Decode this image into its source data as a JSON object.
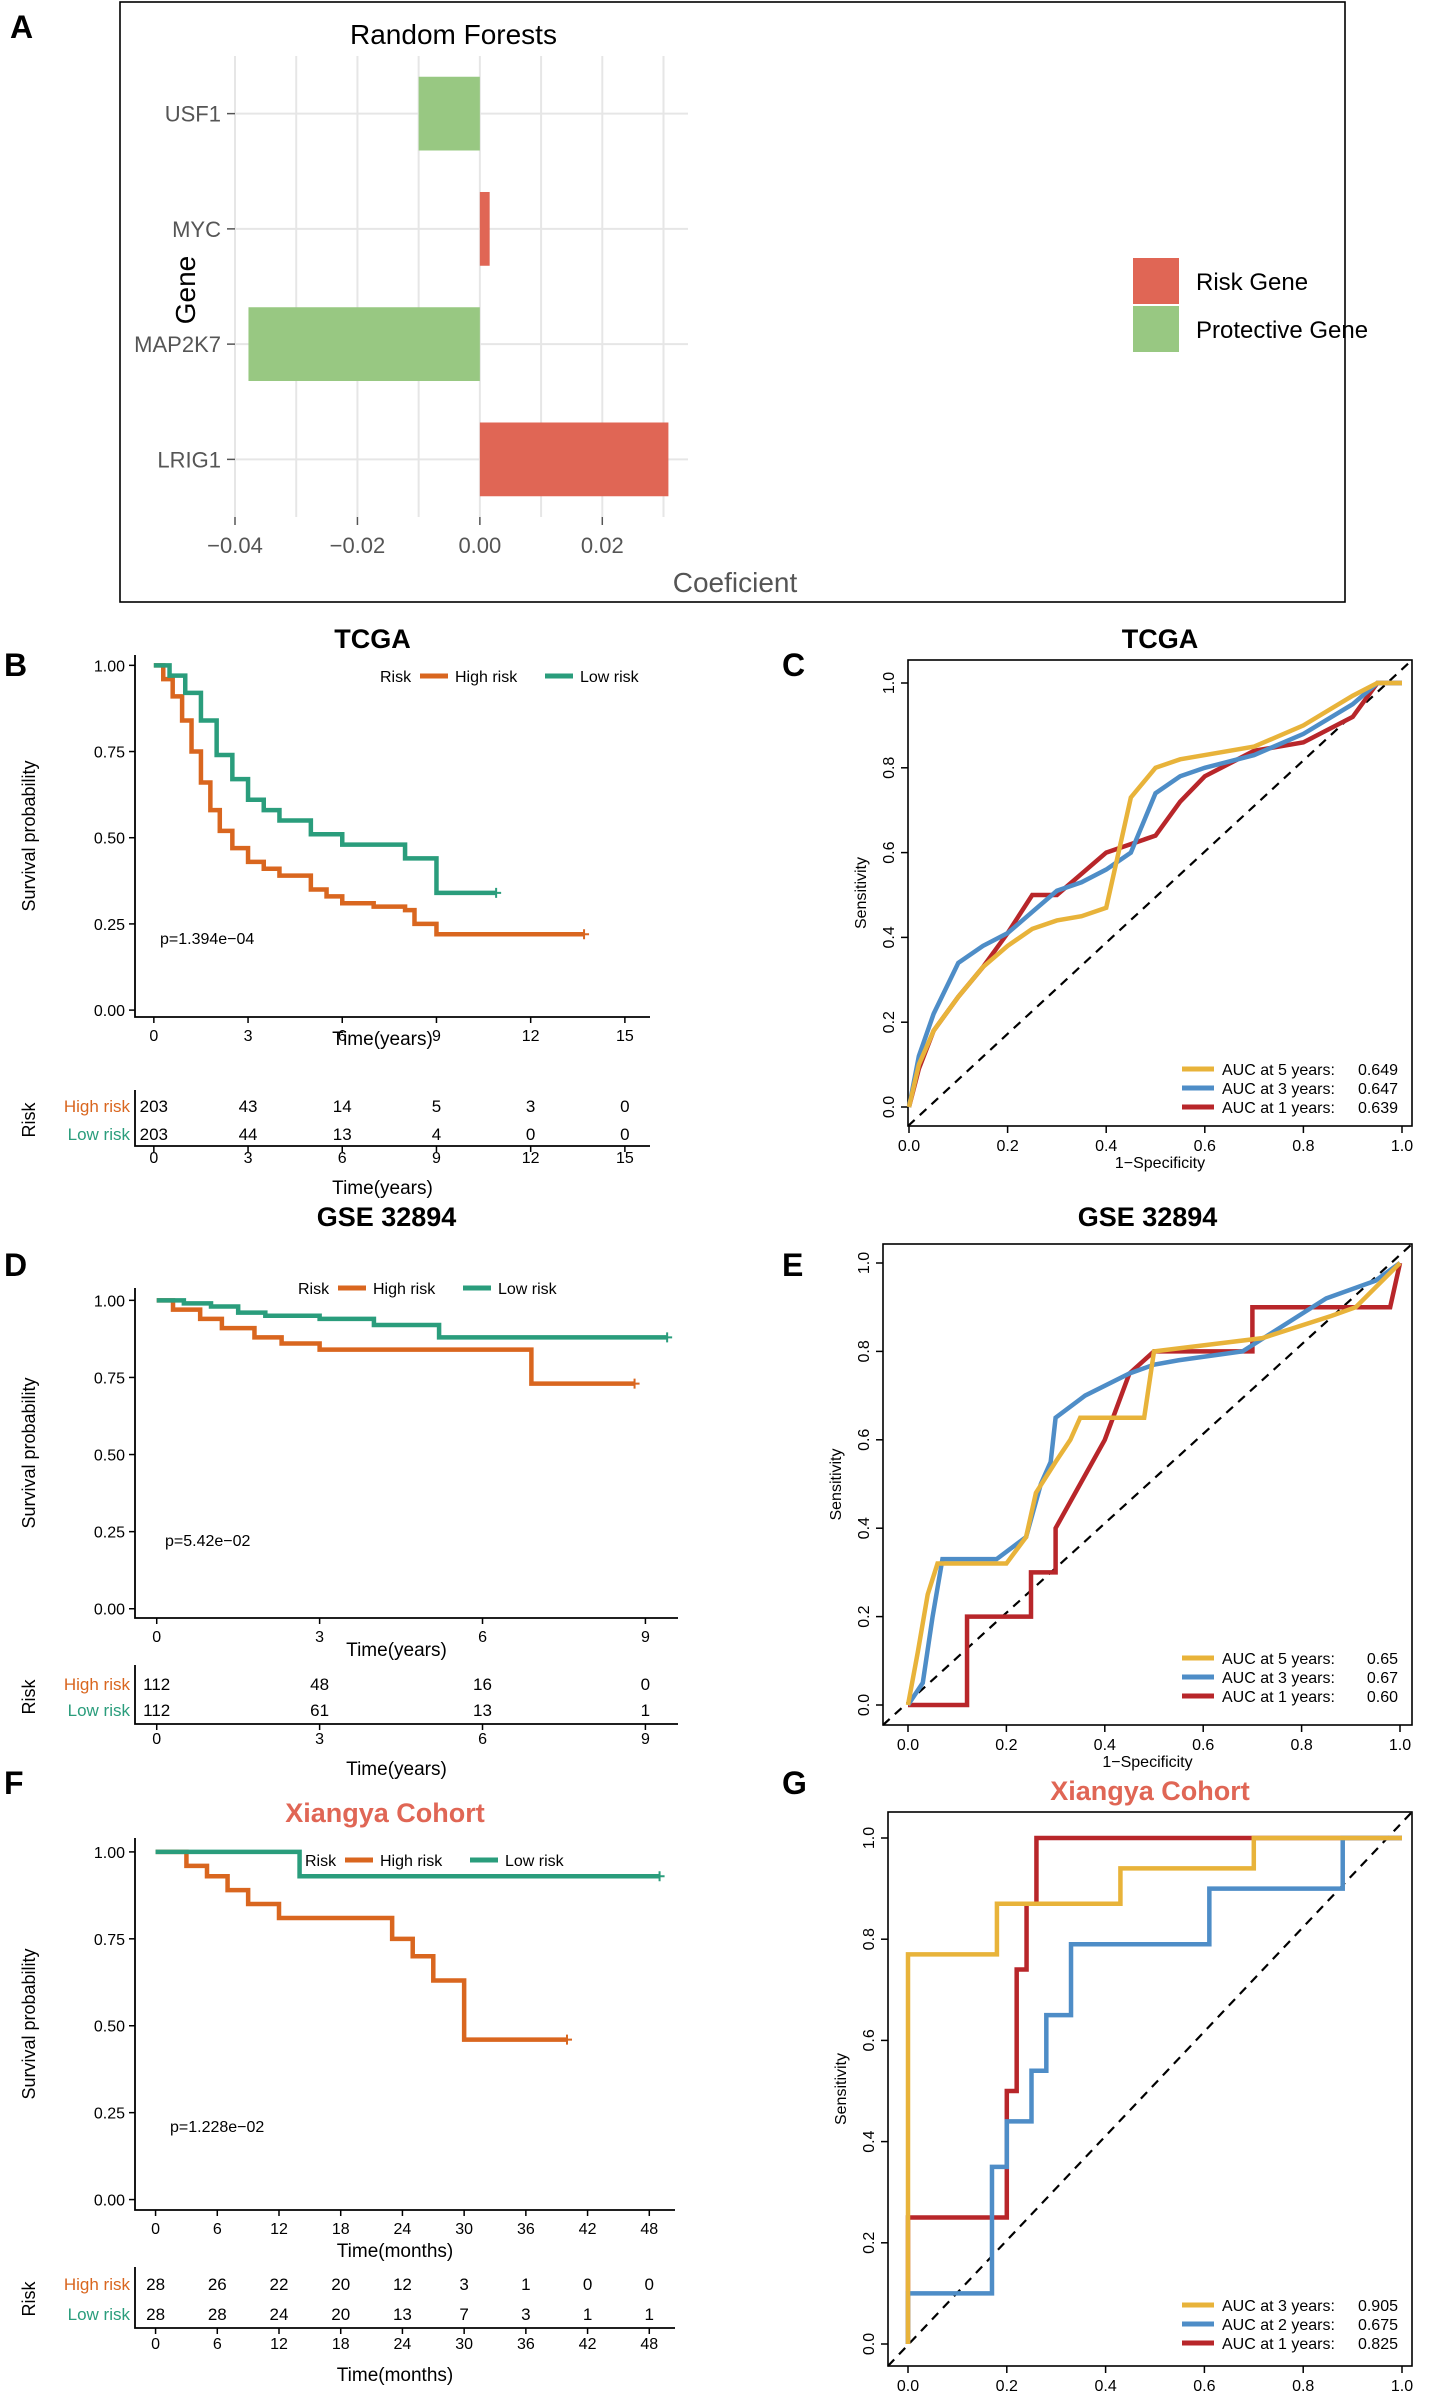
{
  "chart_data": [
    {
      "panel": "A",
      "type": "bar",
      "orientation": "horizontal",
      "title": "Random Forests",
      "xlabel": "Coeficient",
      "ylabel": "Gene",
      "categories": [
        "USF1",
        "MYC",
        "MAP2K7",
        "LRIG1"
      ],
      "values": [
        -0.01,
        0.0016,
        -0.0378,
        0.0308
      ],
      "groups": [
        "Protective Gene",
        "Risk Gene",
        "Protective Gene",
        "Risk Gene"
      ],
      "xlim": [
        -0.04,
        0.034
      ],
      "xticks": [
        -0.04,
        -0.02,
        0.0,
        0.02
      ],
      "xtick_labels": [
        "−0.04",
        "−0.02",
        "0.00",
        "0.02"
      ],
      "legend": [
        "Risk Gene",
        "Protective Gene"
      ],
      "legend_position": "right"
    },
    {
      "panel": "B",
      "type": "line",
      "subtype": "kaplan-meier",
      "title": "TCGA",
      "xlabel": "Time(years)",
      "ylabel": "Survival probability",
      "xlim": [
        -0.6,
        15.8
      ],
      "ylim": [
        -0.02,
        1.03
      ],
      "xticks": [
        0,
        3,
        6,
        9,
        12,
        15
      ],
      "yticks": [
        "0.00",
        "0.25",
        "0.50",
        "0.75",
        "1.00"
      ],
      "legend_title": "Risk",
      "pvalue": "p=1.394e−04",
      "series": [
        {
          "name": "High risk",
          "x": [
            0,
            0.3,
            0.6,
            0.9,
            1.2,
            1.5,
            1.8,
            2.1,
            2.5,
            3,
            3.5,
            4,
            5,
            5.5,
            6,
            7,
            8,
            8.3,
            9,
            10,
            12,
            13.7
          ],
          "y": [
            1.0,
            0.96,
            0.91,
            0.84,
            0.75,
            0.66,
            0.58,
            0.52,
            0.47,
            0.43,
            0.41,
            0.39,
            0.35,
            0.33,
            0.31,
            0.3,
            0.29,
            0.25,
            0.22,
            0.22,
            0.22,
            0.22
          ]
        },
        {
          "name": "Low risk",
          "x": [
            0,
            0.5,
            1,
            1.5,
            2,
            2.5,
            3,
            3.5,
            4,
            5,
            6,
            7,
            8,
            9,
            10,
            10.9
          ],
          "y": [
            1.0,
            0.97,
            0.92,
            0.84,
            0.74,
            0.67,
            0.61,
            0.58,
            0.55,
            0.51,
            0.48,
            0.48,
            0.44,
            0.34,
            0.34,
            0.34
          ]
        }
      ],
      "risk_table": {
        "title": "Risk",
        "times": [
          0,
          3,
          6,
          9,
          12,
          15
        ],
        "high": [
          "203",
          "43",
          "14",
          "5",
          "3",
          "0"
        ],
        "low": [
          "203",
          "44",
          "13",
          "4",
          "0",
          "0"
        ],
        "xlabel": "Time(years)"
      }
    },
    {
      "panel": "C",
      "type": "line",
      "subtype": "roc",
      "title": "TCGA",
      "xlabel": "1−Specificity",
      "ylabel": "Sensitivity",
      "ticks": [
        "0.0",
        "0.2",
        "0.4",
        "0.6",
        "0.8",
        "1.0"
      ],
      "series": [
        {
          "name": "AUC at 5 years:",
          "value": "0.649",
          "color": "#e8b33a",
          "x": [
            0,
            0.02,
            0.05,
            0.1,
            0.15,
            0.2,
            0.25,
            0.3,
            0.35,
            0.4,
            0.45,
            0.5,
            0.55,
            0.6,
            0.7,
            0.8,
            0.9,
            0.95,
            1
          ],
          "y": [
            0,
            0.1,
            0.18,
            0.26,
            0.33,
            0.38,
            0.42,
            0.44,
            0.45,
            0.47,
            0.73,
            0.8,
            0.82,
            0.83,
            0.85,
            0.9,
            0.97,
            1.0,
            1.0
          ]
        },
        {
          "name": "AUC at 3 years:",
          "value": "0.647",
          "color": "#4e8dc7",
          "x": [
            0,
            0.02,
            0.05,
            0.1,
            0.15,
            0.2,
            0.25,
            0.3,
            0.35,
            0.4,
            0.45,
            0.5,
            0.55,
            0.6,
            0.7,
            0.8,
            0.9,
            0.95,
            1
          ],
          "y": [
            0,
            0.12,
            0.22,
            0.34,
            0.38,
            0.41,
            0.46,
            0.51,
            0.53,
            0.56,
            0.6,
            0.74,
            0.78,
            0.8,
            0.83,
            0.88,
            0.95,
            1.0,
            1.0
          ]
        },
        {
          "name": "AUC at 1 years:",
          "value": "0.639",
          "color": "#b8262a",
          "x": [
            0,
            0.02,
            0.05,
            0.1,
            0.15,
            0.2,
            0.25,
            0.3,
            0.35,
            0.4,
            0.45,
            0.5,
            0.55,
            0.6,
            0.7,
            0.8,
            0.9,
            0.95,
            1
          ],
          "y": [
            0,
            0.09,
            0.18,
            0.26,
            0.33,
            0.41,
            0.5,
            0.5,
            0.55,
            0.6,
            0.62,
            0.64,
            0.72,
            0.78,
            0.84,
            0.86,
            0.92,
            1.0,
            1.0
          ]
        }
      ]
    },
    {
      "panel": "D",
      "type": "line",
      "subtype": "kaplan-meier",
      "title": "GSE 32894",
      "xlabel": "Time(years)",
      "ylabel": "Survival probability",
      "xlim": [
        -0.4,
        9.6
      ],
      "ylim": [
        -0.03,
        1.04
      ],
      "xticks": [
        0,
        3,
        6,
        9
      ],
      "yticks": [
        "0.00",
        "0.25",
        "0.50",
        "0.75",
        "1.00"
      ],
      "legend_title": "Risk",
      "pvalue": "p=5.42e−02",
      "series": [
        {
          "name": "High risk",
          "x": [
            0,
            0.3,
            0.8,
            1.2,
            1.8,
            2.3,
            3,
            4,
            5,
            6,
            6.9,
            7.5,
            8.8
          ],
          "y": [
            1.0,
            0.97,
            0.94,
            0.91,
            0.88,
            0.86,
            0.84,
            0.84,
            0.84,
            0.84,
            0.73,
            0.73,
            0.73
          ]
        },
        {
          "name": "Low risk",
          "x": [
            0,
            0.5,
            1,
            1.5,
            2,
            3,
            4,
            5,
            5.2,
            6,
            7,
            8,
            9.4
          ],
          "y": [
            1.0,
            0.99,
            0.98,
            0.96,
            0.95,
            0.94,
            0.92,
            0.92,
            0.88,
            0.88,
            0.88,
            0.88,
            0.88
          ]
        }
      ],
      "risk_table": {
        "title": "Risk",
        "times": [
          0,
          3,
          6,
          9
        ],
        "high": [
          "112",
          "48",
          "16",
          "0"
        ],
        "low": [
          "112",
          "61",
          "13",
          "1"
        ],
        "xlabel": "Time(years)"
      }
    },
    {
      "panel": "E",
      "type": "line",
      "subtype": "roc",
      "title": "GSE 32894",
      "xlabel": "1−Specificity",
      "ylabel": "Sensitivity",
      "ticks": [
        "0.0",
        "0.2",
        "0.4",
        "0.6",
        "0.8",
        "1.0"
      ],
      "series": [
        {
          "name": "AUC at 5 years:",
          "value": "0.65",
          "color": "#e8b33a",
          "x": [
            0,
            0.02,
            0.04,
            0.06,
            0.2,
            0.24,
            0.26,
            0.3,
            0.33,
            0.35,
            0.38,
            0.48,
            0.5,
            0.72,
            0.86,
            0.91,
            1
          ],
          "y": [
            0,
            0.12,
            0.25,
            0.32,
            0.32,
            0.38,
            0.48,
            0.55,
            0.6,
            0.65,
            0.65,
            0.65,
            0.8,
            0.83,
            0.88,
            0.9,
            1.0
          ]
        },
        {
          "name": "AUC at 3 years:",
          "value": "0.67",
          "color": "#4e8dc7",
          "x": [
            0,
            0.03,
            0.05,
            0.07,
            0.18,
            0.24,
            0.27,
            0.29,
            0.3,
            0.36,
            0.45,
            0.5,
            0.55,
            0.68,
            0.85,
            0.95,
            1
          ],
          "y": [
            0,
            0.05,
            0.2,
            0.33,
            0.33,
            0.38,
            0.5,
            0.55,
            0.65,
            0.7,
            0.75,
            0.77,
            0.78,
            0.8,
            0.92,
            0.96,
            1.0
          ]
        },
        {
          "name": "AUC at 1 years:",
          "value": "0.60",
          "color": "#b8262a",
          "x": [
            0,
            0.12,
            0.12,
            0.25,
            0.25,
            0.3,
            0.3,
            0.35,
            0.4,
            0.45,
            0.5,
            0.7,
            0.7,
            0.98,
            1
          ],
          "y": [
            0,
            0,
            0.2,
            0.2,
            0.3,
            0.3,
            0.4,
            0.5,
            0.6,
            0.75,
            0.8,
            0.8,
            0.9,
            0.9,
            1.0
          ]
        }
      ]
    },
    {
      "panel": "F",
      "type": "line",
      "subtype": "kaplan-meier",
      "title": "Xiangya Cohort",
      "xlabel": "Time(months)",
      "ylabel": "Survival probability",
      "xlim": [
        -2,
        50.5
      ],
      "ylim": [
        -0.03,
        1.04
      ],
      "xticks": [
        0,
        6,
        12,
        18,
        24,
        30,
        36,
        42,
        48
      ],
      "yticks": [
        "0.00",
        "0.25",
        "0.50",
        "0.75",
        "1.00"
      ],
      "legend_title": "Risk",
      "pvalue": "p=1.228e−02",
      "series": [
        {
          "name": "High risk",
          "x": [
            0,
            3,
            5,
            7,
            9,
            12,
            15,
            18,
            23,
            25,
            27,
            30,
            33,
            36,
            40
          ],
          "y": [
            1.0,
            0.96,
            0.93,
            0.89,
            0.85,
            0.81,
            0.81,
            0.81,
            0.75,
            0.7,
            0.63,
            0.46,
            0.46,
            0.46,
            0.46
          ]
        },
        {
          "name": "Low risk",
          "x": [
            0,
            10,
            14,
            20,
            30,
            40,
            49
          ],
          "y": [
            1.0,
            1.0,
            0.93,
            0.93,
            0.93,
            0.93,
            0.93
          ]
        }
      ],
      "risk_table": {
        "title": "Risk",
        "times": [
          0,
          6,
          12,
          18,
          24,
          30,
          36,
          42,
          48
        ],
        "high": [
          "28",
          "26",
          "22",
          "20",
          "12",
          "3",
          "1",
          "0",
          "0"
        ],
        "low": [
          "28",
          "28",
          "24",
          "20",
          "13",
          "7",
          "3",
          "1",
          "1"
        ],
        "xlabel": "Time(months)"
      }
    },
    {
      "panel": "G",
      "type": "line",
      "subtype": "roc",
      "title": "Xiangya Cohort",
      "xlabel": "1−Specificity",
      "ylabel": "Sensitivity",
      "ticks": [
        "0.0",
        "0.2",
        "0.4",
        "0.6",
        "0.8",
        "1.0"
      ],
      "series": [
        {
          "name": "AUC at 3 years:",
          "value": "0.905",
          "color": "#e8b33a",
          "x": [
            0,
            0,
            0.18,
            0.18,
            0.43,
            0.43,
            0.7,
            0.7,
            1
          ],
          "y": [
            0,
            0.77,
            0.77,
            0.87,
            0.87,
            0.94,
            0.94,
            1.0,
            1.0
          ]
        },
        {
          "name": "AUC at 2 years:",
          "value": "0.675",
          "color": "#4e8dc7",
          "x": [
            0,
            0,
            0.17,
            0.17,
            0.2,
            0.2,
            0.25,
            0.25,
            0.28,
            0.28,
            0.33,
            0.33,
            0.61,
            0.61,
            0.88,
            0.88,
            1
          ],
          "y": [
            0,
            0.1,
            0.1,
            0.35,
            0.35,
            0.44,
            0.44,
            0.54,
            0.54,
            0.65,
            0.65,
            0.79,
            0.79,
            0.9,
            0.9,
            1.0,
            1.0
          ]
        },
        {
          "name": "AUC at 1 years:",
          "value": "0.825",
          "color": "#b8262a",
          "x": [
            0,
            0,
            0.2,
            0.2,
            0.22,
            0.22,
            0.24,
            0.24,
            0.26,
            0.26,
            1
          ],
          "y": [
            0,
            0.25,
            0.25,
            0.5,
            0.5,
            0.74,
            0.74,
            0.87,
            0.87,
            1.0,
            1.0
          ]
        }
      ]
    }
  ],
  "panel_letters": [
    "A",
    "B",
    "C",
    "D",
    "E",
    "F",
    "G"
  ],
  "colors": {
    "risk_gene": "#e06655",
    "protective_gene": "#98c882",
    "high_risk": "#d9661f",
    "low_risk": "#2a9d7c",
    "title_highlight": "#e06655"
  },
  "labels": {
    "high_risk": "High risk",
    "low_risk": "Low risk"
  }
}
